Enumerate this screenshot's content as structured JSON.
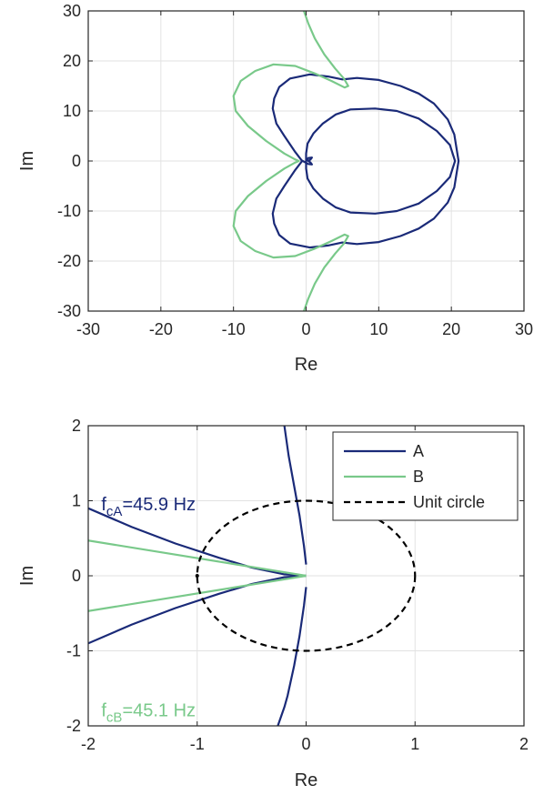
{
  "colors": {
    "A": "#1a2a78",
    "B": "#79c98a",
    "unit": "#000000",
    "grid": "#e2e2e2"
  },
  "chart_data": [
    {
      "type": "line",
      "xlabel": "Re",
      "ylabel": "Im",
      "xlim": [
        -30,
        30
      ],
      "ylim": [
        -30,
        30
      ],
      "xticks": [
        "-30",
        "-20",
        "-10",
        "0",
        "10",
        "20",
        "30"
      ],
      "yticks": [
        "30",
        "20",
        "10",
        "0",
        "-10",
        "-20",
        "-30"
      ],
      "grid": true,
      "series": [
        {
          "key": "A",
          "points": [
            [
              0,
              0
            ],
            [
              0.3,
              0.6
            ],
            [
              0.8,
              0.7
            ],
            [
              0.6,
              0.3
            ],
            [
              0.3,
              0
            ],
            [
              0.6,
              -0.3
            ],
            [
              0.8,
              -0.7
            ],
            [
              0.3,
              -0.6
            ],
            [
              -0.6,
              0.1
            ],
            [
              -1.5,
              1.8
            ],
            [
              -3,
              5
            ],
            [
              -4.1,
              7.5
            ],
            [
              -4.6,
              10.5
            ],
            [
              -4.4,
              12.5
            ],
            [
              -3.7,
              14.8
            ],
            [
              -2.2,
              16.5
            ],
            [
              0.5,
              17.3
            ],
            [
              3,
              16.9
            ],
            [
              5,
              16.3
            ],
            [
              7,
              16.6
            ],
            [
              10,
              16.2
            ],
            [
              13,
              15
            ],
            [
              15.5,
              13.5
            ],
            [
              17.6,
              11.5
            ],
            [
              19.5,
              8.3
            ],
            [
              20.4,
              5.3
            ],
            [
              21,
              0
            ],
            [
              20.4,
              -5.3
            ],
            [
              19.5,
              -8.3
            ],
            [
              17.6,
              -11.5
            ],
            [
              15.5,
              -13.5
            ],
            [
              13,
              -15
            ],
            [
              10,
              -16.2
            ],
            [
              7,
              -16.6
            ],
            [
              5,
              -16.3
            ],
            [
              3,
              -16.9
            ],
            [
              0.5,
              -17.3
            ],
            [
              -2.2,
              -16.5
            ],
            [
              -3.7,
              -14.8
            ],
            [
              -4.4,
              -12.5
            ],
            [
              -4.6,
              -10.5
            ],
            [
              -4.1,
              -7.5
            ],
            [
              -3,
              -5
            ],
            [
              -1.5,
              -1.8
            ],
            [
              -0.6,
              -0.1
            ]
          ]
        },
        {
          "key": "A-inner",
          "points": [
            [
              0,
              0
            ],
            [
              0,
              1.5
            ],
            [
              0.2,
              3.5
            ],
            [
              1,
              5.5
            ],
            [
              2.3,
              7.5
            ],
            [
              4.1,
              9.3
            ],
            [
              6.1,
              10.3
            ],
            [
              9.5,
              10.5
            ],
            [
              12.5,
              10
            ],
            [
              15.5,
              8.5
            ],
            [
              18,
              6
            ],
            [
              19.8,
              3.2
            ],
            [
              20.5,
              0
            ],
            [
              19.8,
              -3.2
            ],
            [
              18,
              -6
            ],
            [
              15.5,
              -8.5
            ],
            [
              12.5,
              -10
            ],
            [
              9.5,
              -10.5
            ],
            [
              6.1,
              -10.3
            ],
            [
              4.1,
              -9.3
            ],
            [
              2.3,
              -7.5
            ],
            [
              1,
              -5.5
            ],
            [
              0.2,
              -3.5
            ],
            [
              0,
              -1.5
            ],
            [
              0,
              0
            ]
          ]
        },
        {
          "key": "B",
          "points": [
            [
              -0.3,
              30
            ],
            [
              0.3,
              27.5
            ],
            [
              1.2,
              24.5
            ],
            [
              2.5,
              21.3
            ],
            [
              4,
              18.5
            ],
            [
              5.2,
              16.5
            ],
            [
              5.8,
              15
            ],
            [
              5.3,
              14.7
            ],
            [
              3.5,
              16
            ],
            [
              1.2,
              17.5
            ],
            [
              -1.5,
              19
            ],
            [
              -4.5,
              19.3
            ],
            [
              -7,
              18
            ],
            [
              -9,
              16
            ],
            [
              -10,
              13
            ],
            [
              -9.7,
              10
            ],
            [
              -8,
              7
            ],
            [
              -5.5,
              4
            ],
            [
              -3,
              1.5
            ],
            [
              -1.5,
              0.3
            ],
            [
              -1,
              0
            ],
            [
              -1.5,
              -0.3
            ],
            [
              -3,
              -1.5
            ],
            [
              -5.5,
              -4
            ],
            [
              -8,
              -7
            ],
            [
              -9.7,
              -10
            ],
            [
              -10,
              -13
            ],
            [
              -9,
              -16
            ],
            [
              -7,
              -18
            ],
            [
              -4.5,
              -19.3
            ],
            [
              -1.5,
              -19
            ],
            [
              1.2,
              -17.5
            ],
            [
              3.5,
              -16
            ],
            [
              5.3,
              -14.7
            ],
            [
              5.8,
              -15
            ],
            [
              5.2,
              -16.5
            ],
            [
              4,
              -18.5
            ],
            [
              2.5,
              -21.3
            ],
            [
              1.2,
              -24.5
            ],
            [
              0.3,
              -27.5
            ],
            [
              -0.3,
              -30
            ]
          ]
        }
      ]
    },
    {
      "type": "line",
      "xlabel": "Re",
      "ylabel": "Im",
      "xlim": [
        -2,
        2
      ],
      "ylim": [
        -2,
        2
      ],
      "xticks": [
        "-2",
        "-1",
        "0",
        "1",
        "2"
      ],
      "yticks": [
        "2",
        "1",
        "0",
        "-1",
        "-2"
      ],
      "grid": true,
      "legend_position": "top-right",
      "legend": [
        {
          "label": "A",
          "style": "solid",
          "key": "A"
        },
        {
          "label": "B",
          "style": "solid",
          "key": "B"
        },
        {
          "label": "Unit circle",
          "style": "dashed",
          "key": "unit"
        }
      ],
      "annotations": [
        {
          "main": "f",
          "sub": "cA",
          "rest": "=45.9 Hz",
          "color_key": "A",
          "x": -1.88,
          "y": 0.87
        },
        {
          "main": "f",
          "sub": "cB",
          "rest": "=45.1 Hz",
          "color_key": "B",
          "x": -1.88,
          "y": -1.87
        }
      ],
      "series": [
        {
          "key": "A",
          "points": [
            [
              -2,
              0.9
            ],
            [
              -1.6,
              0.65
            ],
            [
              -1.2,
              0.43
            ],
            [
              -0.8,
              0.24
            ],
            [
              -0.5,
              0.11
            ],
            [
              -0.2,
              0.02
            ],
            [
              0,
              0
            ]
          ]
        },
        {
          "key": "A",
          "points": [
            [
              -2,
              -0.9
            ],
            [
              -1.6,
              -0.65
            ],
            [
              -1.2,
              -0.43
            ],
            [
              -0.8,
              -0.24
            ],
            [
              -0.5,
              -0.11
            ],
            [
              -0.2,
              -0.02
            ],
            [
              0,
              0
            ]
          ]
        },
        {
          "key": "B",
          "points": [
            [
              -2,
              0.47
            ],
            [
              0,
              0
            ]
          ]
        },
        {
          "key": "B",
          "points": [
            [
              -2,
              -0.47
            ],
            [
              0,
              0
            ]
          ]
        },
        {
          "key": "A",
          "points": [
            [
              -0.2,
              2
            ],
            [
              -0.16,
              1.6
            ],
            [
              -0.11,
              1.2
            ],
            [
              -0.06,
              0.8
            ],
            [
              -0.02,
              0.4
            ],
            [
              0,
              0.15
            ]
          ]
        },
        {
          "key": "A",
          "points": [
            [
              0,
              -0.15
            ],
            [
              -0.02,
              -0.4
            ],
            [
              -0.06,
              -0.8
            ],
            [
              -0.11,
              -1.2
            ],
            [
              -0.17,
              -1.6
            ],
            [
              -0.2,
              -1.75
            ],
            [
              -0.26,
              -2
            ]
          ]
        },
        {
          "key": "unit",
          "circle": {
            "cx": 0,
            "cy": 0,
            "r": 1
          }
        }
      ]
    }
  ]
}
